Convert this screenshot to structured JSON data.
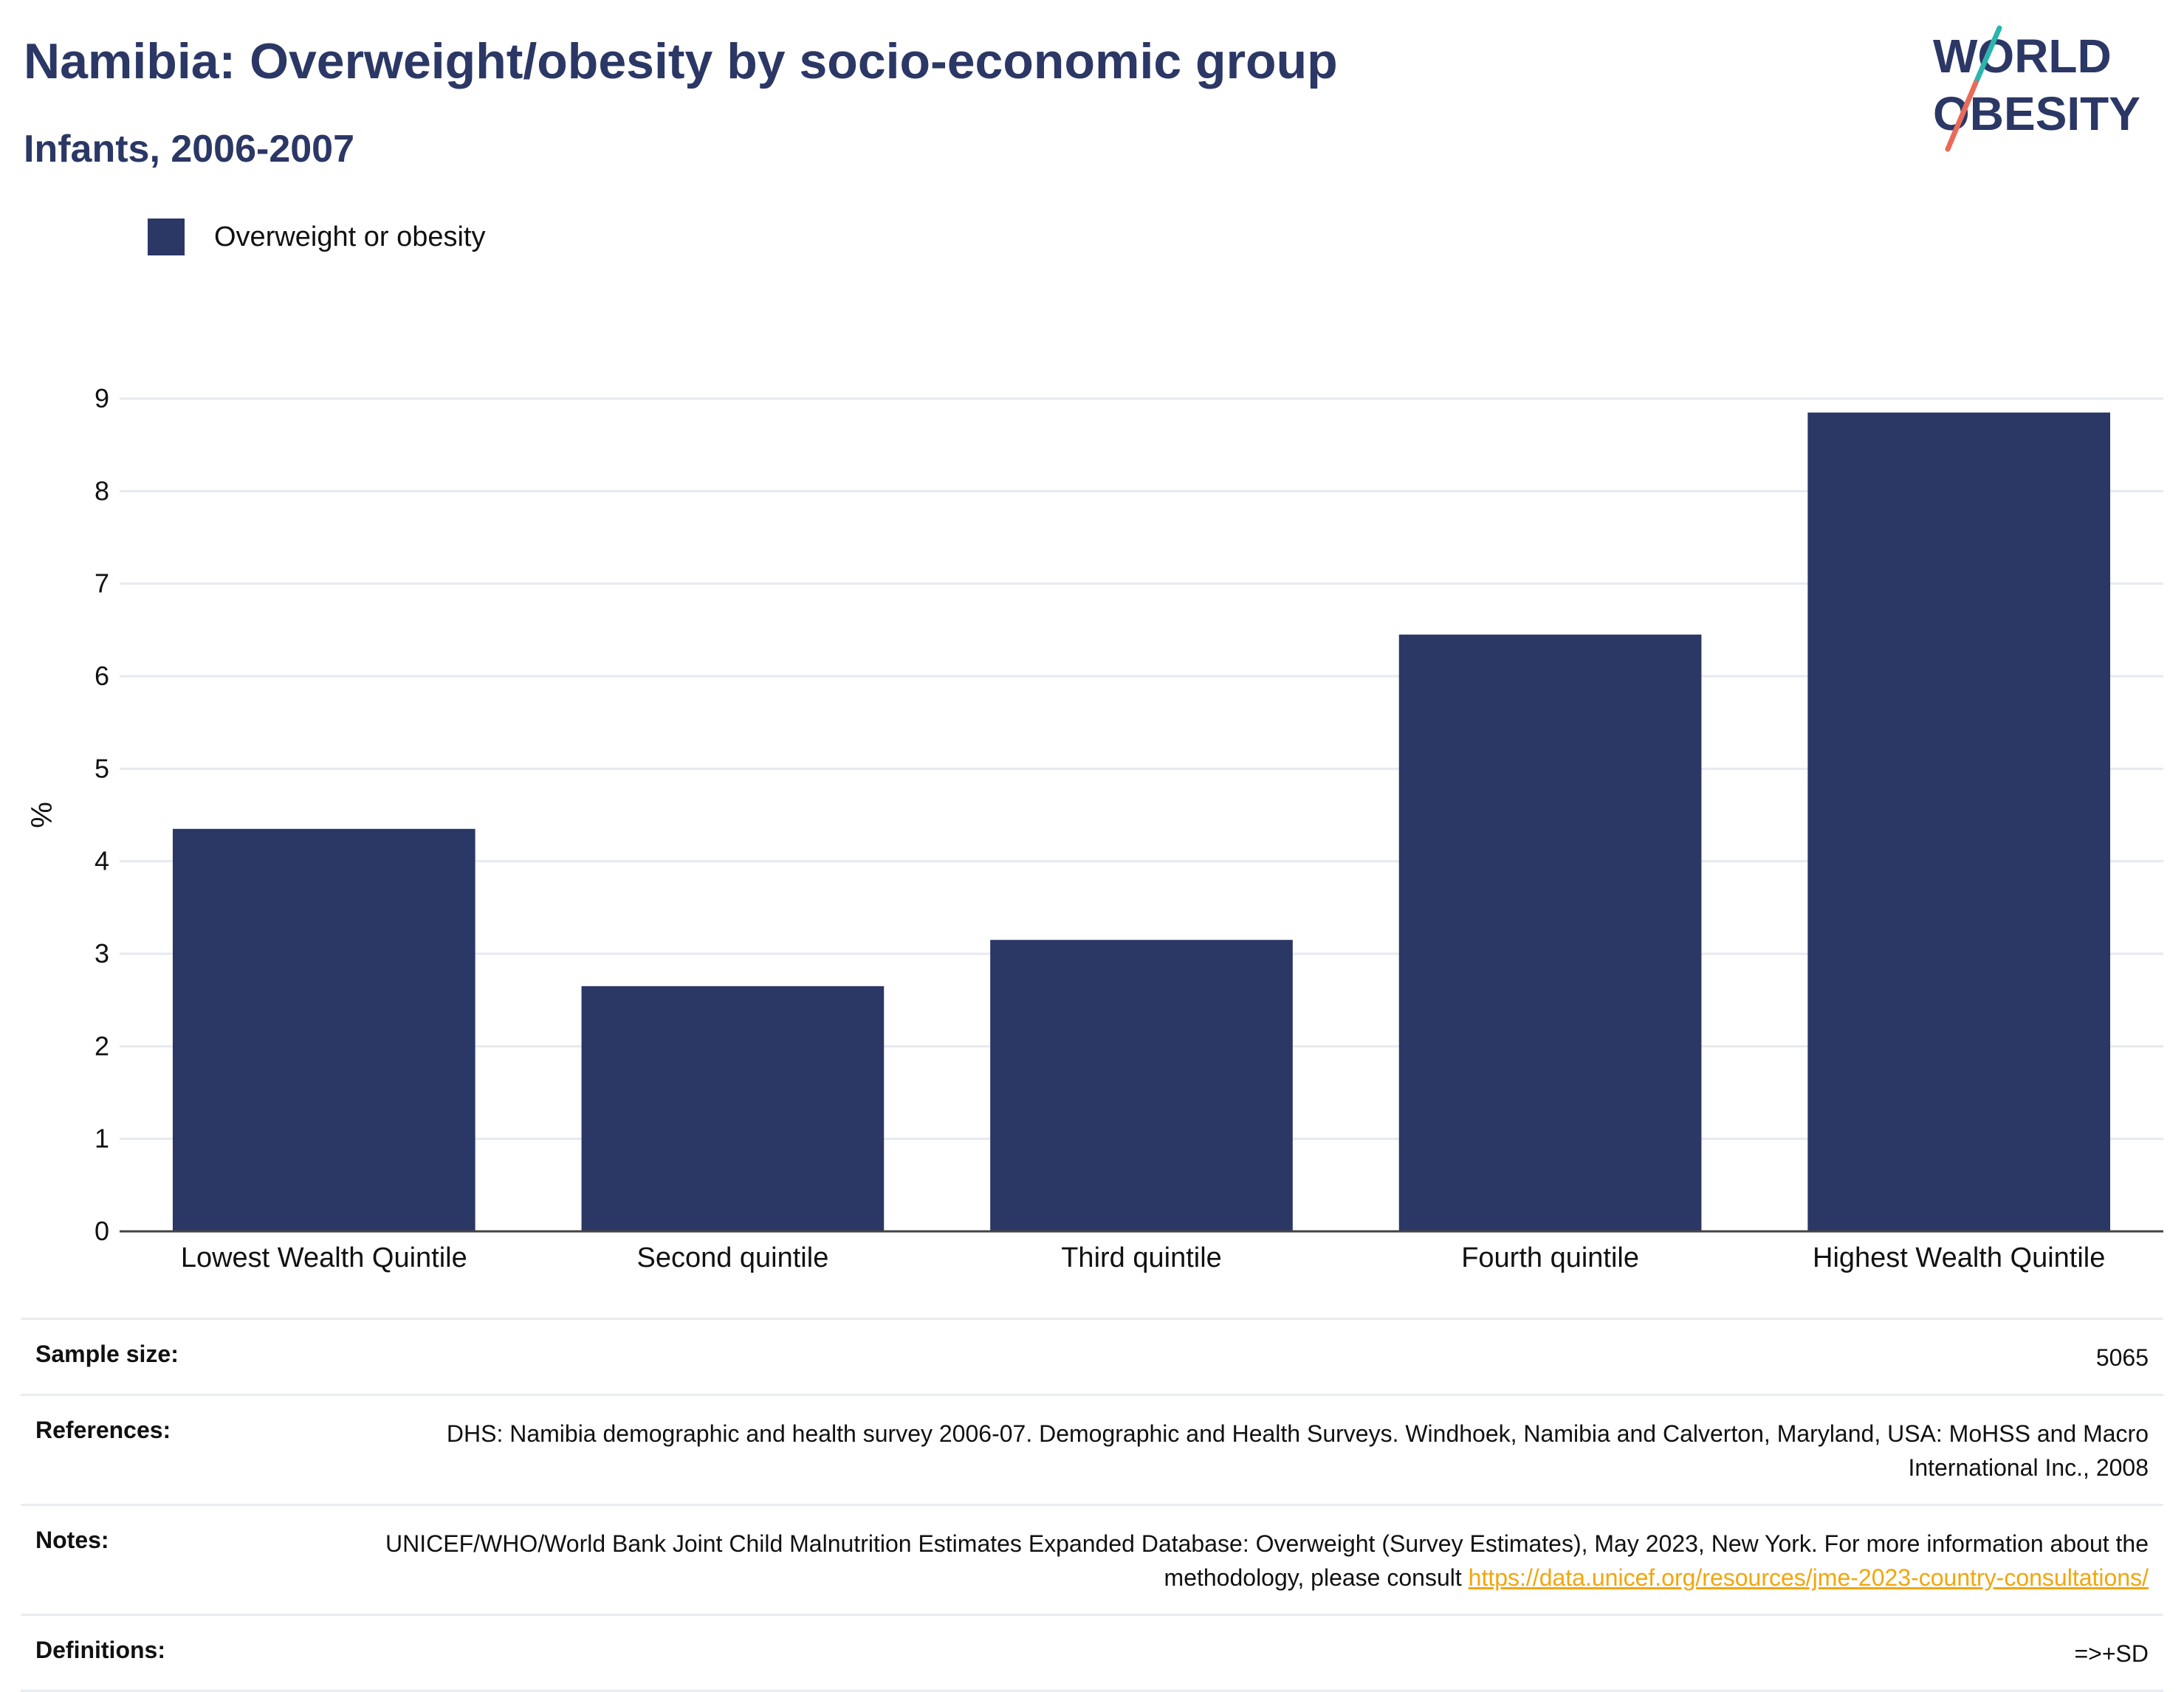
{
  "header": {
    "title": "Namibia: Overweight/obesity by socio-economic group",
    "subtitle": "Infants, 2006-2007"
  },
  "logo": {
    "line1": "WORLD",
    "line2": "OBESITY",
    "colors": {
      "text": "#2b3765",
      "slash_top": "#2bb5ae",
      "slash_bottom": "#ea6a5a"
    }
  },
  "legend": {
    "label": "Overweight or obesity",
    "color": "#2b3765"
  },
  "chart_data": {
    "type": "bar",
    "categories": [
      "Lowest Wealth Quintile",
      "Second quintile",
      "Third quintile",
      "Fourth quintile",
      "Highest Wealth Quintile"
    ],
    "series": [
      {
        "name": "Overweight or obesity",
        "values": [
          4.35,
          2.65,
          3.15,
          6.45,
          8.85
        ],
        "color": "#2b3765"
      }
    ],
    "ylabel": "%",
    "ylim": [
      0,
      9
    ],
    "yticks": [
      0,
      1,
      2,
      3,
      4,
      5,
      6,
      7,
      8,
      9
    ],
    "grid": true,
    "legend_position": "top-left"
  },
  "info": {
    "sample_size_label": "Sample size:",
    "sample_size_value": "5065",
    "references_label": "References:",
    "references_value": "DHS: Namibia demographic and health survey 2006-07. Demographic and Health Surveys. Windhoek, Namibia and Calverton, Maryland, USA: MoHSS and Macro International Inc., 2008",
    "notes_label": "Notes:",
    "notes_text": "UNICEF/WHO/World Bank Joint Child Malnutrition Estimates Expanded Database: Overweight (Survey Estimates), May 2023, New York. For more information about the methodology, please consult ",
    "notes_link": "https://data.unicef.org/resources/jme-2023-country-consultations/",
    "definitions_label": "Definitions:",
    "definitions_value": "=>+SD"
  }
}
